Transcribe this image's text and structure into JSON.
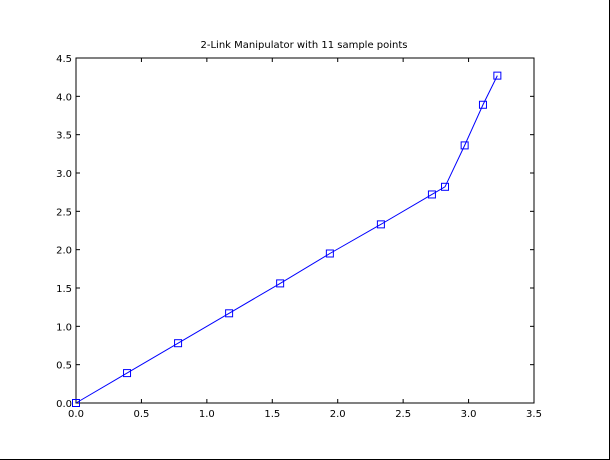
{
  "chart_data": {
    "type": "line",
    "title": "2-Link Manipulator with 11 sample points",
    "xlabel": "",
    "ylabel": "",
    "xlim": [
      0,
      3.5
    ],
    "ylim": [
      0,
      4.5
    ],
    "x_ticks": [
      0.0,
      0.5,
      1.0,
      1.5,
      2.0,
      2.5,
      3.0,
      3.5
    ],
    "x_tick_labels": [
      "0.0",
      "0.5",
      "1.0",
      "1.5",
      "2.0",
      "2.5",
      "3.0",
      "3.5"
    ],
    "y_ticks": [
      0.0,
      0.5,
      1.0,
      1.5,
      2.0,
      2.5,
      3.0,
      3.5,
      4.0,
      4.5
    ],
    "y_tick_labels": [
      "0.0",
      "0.5",
      "1.0",
      "1.5",
      "2.0",
      "2.5",
      "3.0",
      "3.5",
      "4.0",
      "4.5"
    ],
    "grid": false,
    "series": [
      {
        "color": "#0000ff",
        "marker": "square",
        "x": [
          0.0,
          0.39,
          0.78,
          1.17,
          1.56,
          1.94,
          2.33,
          2.72,
          2.82,
          2.97,
          3.11,
          3.22
        ],
        "y": [
          0.0,
          0.39,
          0.78,
          1.17,
          1.56,
          1.95,
          2.33,
          2.72,
          2.82,
          3.36,
          3.89,
          4.27
        ]
      }
    ]
  }
}
